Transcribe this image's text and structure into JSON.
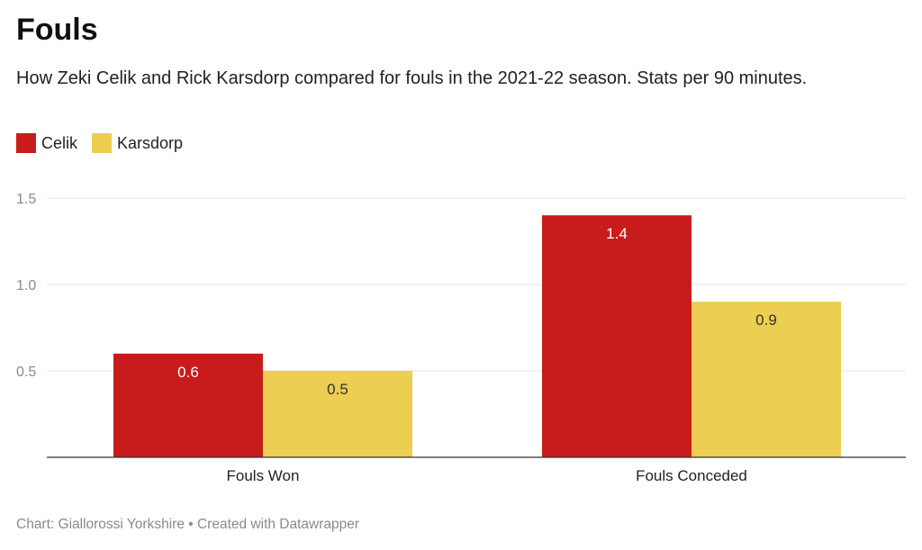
{
  "header": {
    "title": "Fouls",
    "subtitle": "How Zeki Celik and Rick Karsdorp compared for fouls in the 2021-22 season. Stats per 90 minutes."
  },
  "legend": [
    {
      "name": "Celik",
      "color": "#c81c1c"
    },
    {
      "name": "Karsdorp",
      "color": "#ecce50"
    }
  ],
  "footer": {
    "source": "Chart: Giallorossi Yorkshire • Created with Datawrapper"
  },
  "chart_data": {
    "type": "bar",
    "categories": [
      "Fouls Won",
      "Fouls Conceded"
    ],
    "series": [
      {
        "name": "Celik",
        "values": [
          0.6,
          1.4
        ],
        "labels": [
          "0.6",
          "1.4"
        ],
        "color": "#c81c1c",
        "label_color": "#ffffff"
      },
      {
        "name": "Karsdorp",
        "values": [
          0.5,
          0.9
        ],
        "labels": [
          "0.5",
          "0.9"
        ],
        "color": "#ecce50",
        "label_color": "#333333"
      }
    ],
    "ylim": [
      0,
      1.5
    ],
    "yticks": [
      0.5,
      1.0,
      1.5
    ],
    "ytick_labels": [
      "0.5",
      "1.0",
      "1.5"
    ],
    "grid": true,
    "legend_position": "top-left"
  }
}
